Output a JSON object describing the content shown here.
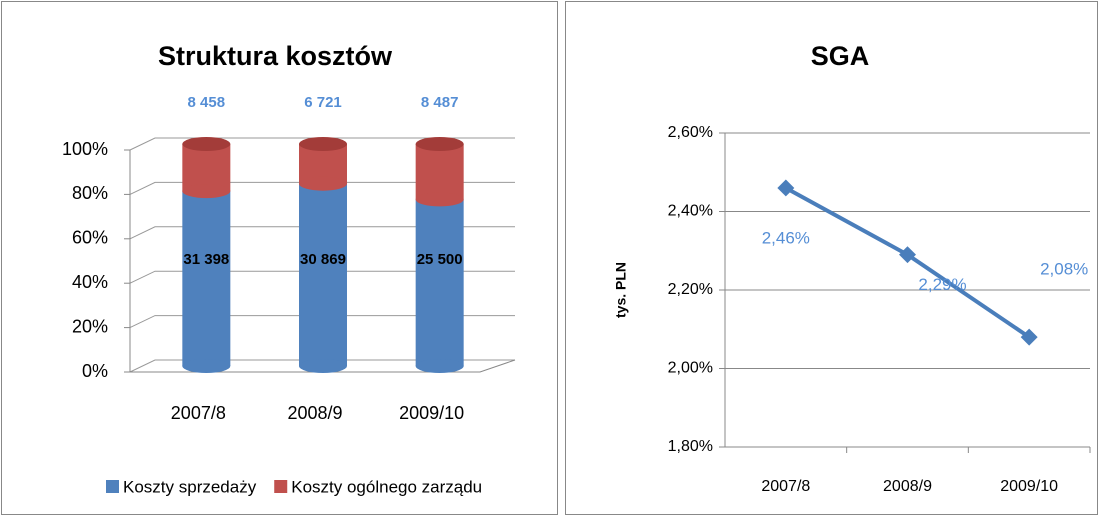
{
  "chart_data": [
    {
      "type": "bar",
      "stacked": "percent",
      "title": "Struktura kosztów",
      "categories": [
        "2007/8",
        "2008/9",
        "2009/10"
      ],
      "series": [
        {
          "name": "Koszty sprzedaży",
          "color": "#4f81bd",
          "values": [
            31398,
            30869,
            25500
          ],
          "value_labels": [
            "31 398",
            "30 869",
            "25 500"
          ]
        },
        {
          "name": "Koszty ogólnego zarządu",
          "color": "#c0504d",
          "values": [
            8458,
            6721,
            8487
          ],
          "value_labels": [
            "8 458",
            "6 721",
            "8 487"
          ]
        }
      ],
      "ylim": [
        0,
        100
      ],
      "yticks": [
        {
          "value": 0,
          "label": "0%"
        },
        {
          "value": 20,
          "label": "20%"
        },
        {
          "value": 40,
          "label": "40%"
        },
        {
          "value": 60,
          "label": "60%"
        },
        {
          "value": 80,
          "label": "80%"
        },
        {
          "value": 100,
          "label": "100%"
        }
      ],
      "grid": true,
      "legend": "bottom"
    },
    {
      "type": "line",
      "title": "SGA",
      "y_label": "tys. PLN",
      "categories": [
        "2007/8",
        "2008/9",
        "2009/10"
      ],
      "series": [
        {
          "name": "SGA",
          "color": "#4a7ebb",
          "values": [
            2.46,
            2.29,
            2.08
          ],
          "value_labels": [
            "2,46%",
            "2,29%",
            "2,08%"
          ]
        }
      ],
      "ylim": [
        1.8,
        2.6
      ],
      "yticks": [
        {
          "value": 1.8,
          "label": "1,80%"
        },
        {
          "value": 2.0,
          "label": "2,00%"
        },
        {
          "value": 2.2,
          "label": "2,20%"
        },
        {
          "value": 2.4,
          "label": "2,40%"
        },
        {
          "value": 2.6,
          "label": "2,60%"
        }
      ],
      "grid": true
    }
  ]
}
